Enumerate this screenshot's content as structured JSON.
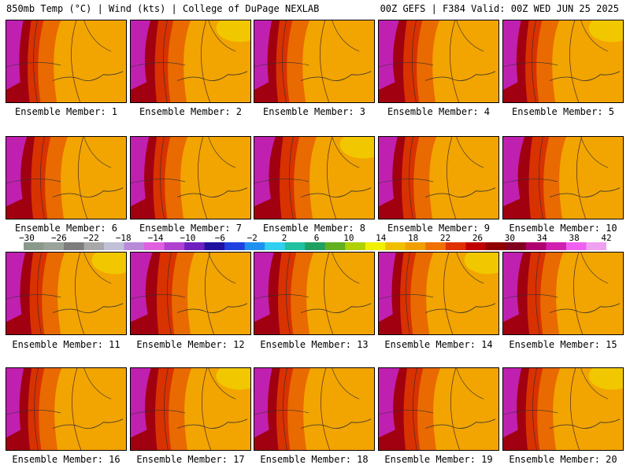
{
  "header": {
    "left": "850mb Temp (°C) | Wind (kts) | College of DuPage NEXLAB",
    "right": "00Z GEFS | F384 Valid: 00Z WED JUN 25 2025"
  },
  "panels": [
    {
      "label": "Ensemble Member: 1"
    },
    {
      "label": "Ensemble Member: 2"
    },
    {
      "label": "Ensemble Member: 3"
    },
    {
      "label": "Ensemble Member: 4"
    },
    {
      "label": "Ensemble Member: 5"
    },
    {
      "label": "Ensemble Member: 6"
    },
    {
      "label": "Ensemble Member: 7"
    },
    {
      "label": "Ensemble Member: 8"
    },
    {
      "label": "Ensemble Member: 9"
    },
    {
      "label": "Ensemble Member: 10"
    },
    {
      "label": "Ensemble Member: 11"
    },
    {
      "label": "Ensemble Member: 12"
    },
    {
      "label": "Ensemble Member: 13"
    },
    {
      "label": "Ensemble Member: 14"
    },
    {
      "label": "Ensemble Member: 15"
    },
    {
      "label": "Ensemble Member: 16"
    },
    {
      "label": "Ensemble Member: 17"
    },
    {
      "label": "Ensemble Member: 18"
    },
    {
      "label": "Ensemble Member: 19"
    },
    {
      "label": "Ensemble Member: 20"
    }
  ],
  "colorbar": {
    "ticks": [
      "−30",
      "−26",
      "−22",
      "−18",
      "−14",
      "−10",
      "−6",
      "−2",
      "2",
      "6",
      "10",
      "14",
      "18",
      "22",
      "26",
      "30",
      "34",
      "38",
      "42"
    ],
    "colors": [
      "#8a9a8a",
      "#9aa39a",
      "#7d7d7d",
      "#a8a8a8",
      "#c0c0d8",
      "#b88ad8",
      "#e060e0",
      "#b040d0",
      "#7020c0",
      "#2010a0",
      "#2040e0",
      "#2090f0",
      "#30d0f0",
      "#20c0a0",
      "#20a060",
      "#60b020",
      "#b0d000",
      "#f0f000",
      "#f0c000",
      "#f0a000",
      "#f07000",
      "#e03000",
      "#c00000",
      "#900000",
      "#800020",
      "#b00070",
      "#d020b0",
      "#f060f0",
      "#f0a0f0"
    ]
  },
  "colors": {
    "warm": "#f2a400",
    "hot": "#e86a00",
    "hotter": "#d83200",
    "dark_red": "#a00010",
    "magenta": "#c020b0",
    "yellow": "#f0d000"
  }
}
